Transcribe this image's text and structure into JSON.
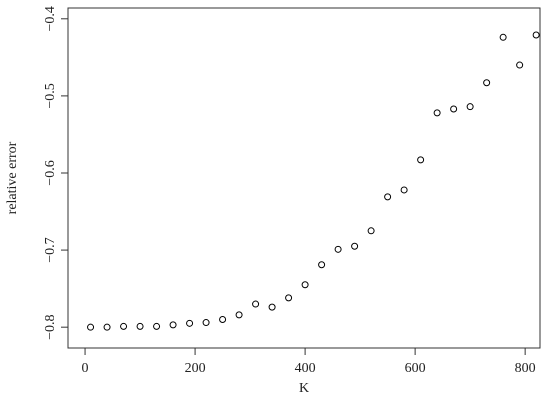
{
  "chart_data": {
    "type": "scatter",
    "x_label": "K",
    "y_label": "relative error",
    "x": [
      10,
      40,
      70,
      100,
      130,
      160,
      190,
      220,
      250,
      280,
      310,
      340,
      370,
      400,
      430,
      460,
      490,
      520,
      550,
      580,
      610,
      640,
      670,
      700,
      730,
      760,
      790,
      820
    ],
    "values": [
      -0.8,
      -0.8,
      -0.799,
      -0.799,
      -0.799,
      -0.797,
      -0.795,
      -0.794,
      -0.79,
      -0.784,
      -0.77,
      -0.774,
      -0.762,
      -0.745,
      -0.719,
      -0.699,
      -0.695,
      -0.675,
      -0.631,
      -0.622,
      -0.583,
      -0.522,
      -0.517,
      -0.514,
      -0.483,
      -0.424,
      -0.46,
      -0.421
    ],
    "color": "#000000",
    "xlim": [
      -31,
      827
    ],
    "ylim": [
      -0.827,
      -0.386
    ],
    "xticks": [
      0,
      200,
      400,
      600,
      800
    ],
    "yticks": [
      {
        "value": -0.8,
        "label": "−0.8"
      },
      {
        "value": -0.7,
        "label": "−0.7"
      },
      {
        "value": -0.6,
        "label": "−0.6"
      },
      {
        "value": -0.5,
        "label": "−0.5"
      },
      {
        "value": -0.4,
        "label": "−0.4"
      }
    ]
  }
}
